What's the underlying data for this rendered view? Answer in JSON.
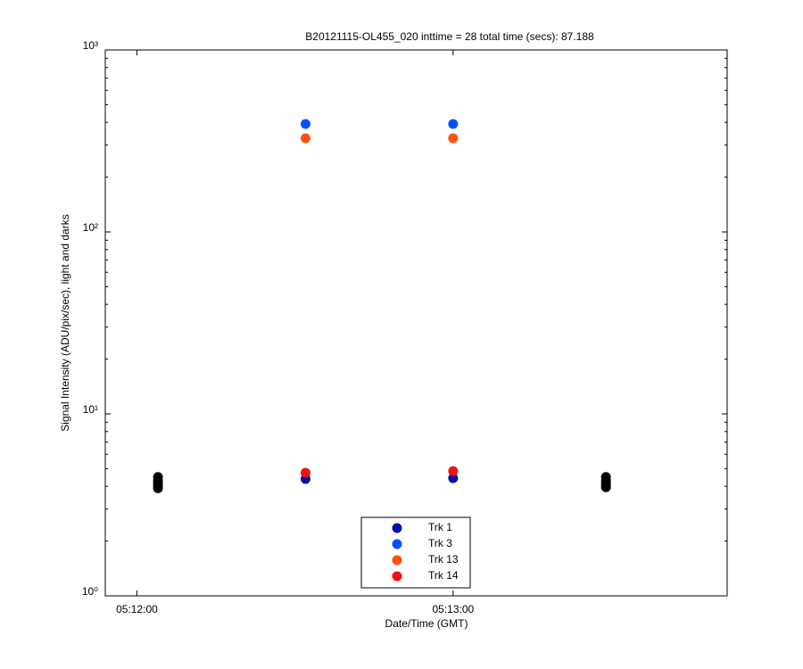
{
  "chart_data": {
    "type": "scatter",
    "title": "B20121115-OL455_020 inttime = 28 total time (secs): 87.188",
    "x_label": "Date/Time (GMT)",
    "y_label": "Signal Intensity (ADU/pix/sec), light and darks",
    "y_scale": "log",
    "xlim": [
      "05:11:54",
      "05:13:52"
    ],
    "xticks": [
      "05:12:00",
      "05:13:00"
    ],
    "ylim": [
      1,
      1000
    ],
    "yticks": [
      {
        "value": 1,
        "label": "10⁰"
      },
      {
        "value": 10,
        "label": "10¹"
      },
      {
        "value": 100,
        "label": "10²"
      },
      {
        "value": 1000,
        "label": "10³"
      }
    ],
    "legend": "bottom",
    "series": [
      {
        "color": "#000000",
        "x": [
          "05:12:04",
          "05:12:04",
          "05:12:04",
          "05:12:04",
          "05:12:04",
          "05:13:29",
          "05:13:29",
          "05:13:29",
          "05:13:29",
          "05:13:29"
        ],
        "values": [
          4.5,
          4.3,
          4.15,
          4.0,
          3.9,
          4.5,
          4.3,
          4.15,
          4.05,
          3.95
        ]
      },
      {
        "name": "Trk 1",
        "color": "#0010a8",
        "x": [
          "05:12:32",
          "05:13:00"
        ],
        "values": [
          4.39,
          4.43
        ]
      },
      {
        "name": "Trk 3",
        "color": "#0050ff",
        "x": [
          "05:12:32",
          "05:13:00"
        ],
        "values": [
          392,
          392
        ]
      },
      {
        "name": "Trk 13",
        "color": "#ff5010",
        "x": [
          "05:12:32",
          "05:13:00"
        ],
        "values": [
          327,
          327
        ]
      },
      {
        "name": "Trk 14",
        "color": "#f01010",
        "x": [
          "05:12:32",
          "05:13:00"
        ],
        "values": [
          4.75,
          4.85
        ]
      }
    ]
  }
}
